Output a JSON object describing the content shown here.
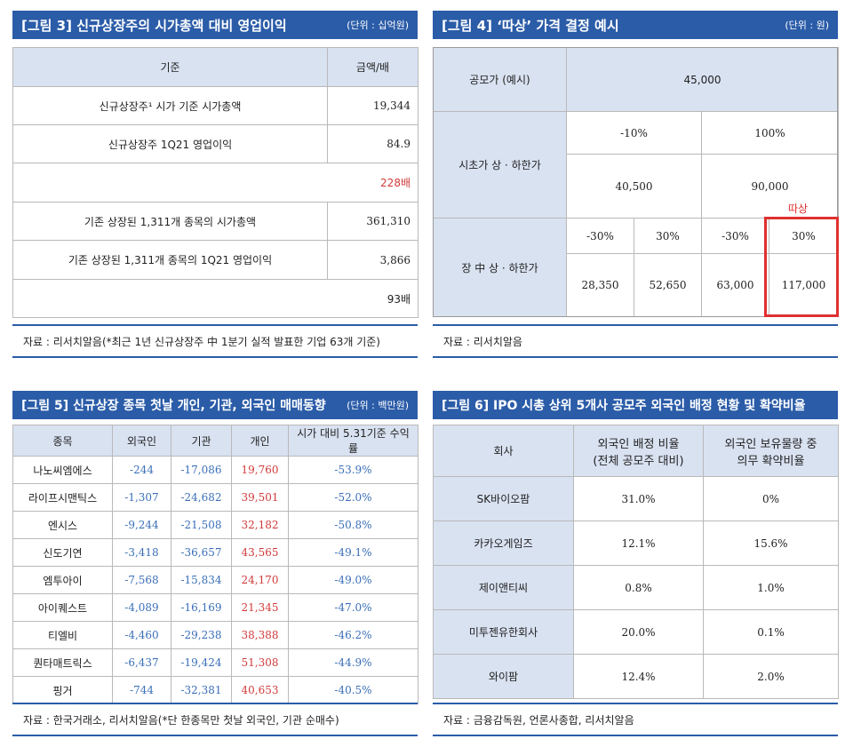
{
  "fig3": {
    "title": "[그림 3] 신규상장주의 시가총액 대비 영업이익",
    "unit": "(단위 : 십억원)",
    "headers": [
      "기준",
      "금액/배"
    ],
    "rows": [
      [
        "신규상장주¹ 시가 기준 시가총액",
        "19,344"
      ],
      [
        "신규상장주 1Q21 영업이익",
        "84.9"
      ],
      [
        "",
        "228배"
      ],
      [
        "기존 상장된 1,311개 종목의 시가총액",
        "361,310"
      ],
      [
        "기존 상장된 1,311개 종목의 1Q21 영업이익",
        "3,866"
      ],
      [
        "",
        "93배"
      ]
    ],
    "source": "자료 : 리서치알음(*최근 1년 신규상장주 中 1분기 실적 발표한 기업 63개 기준)"
  },
  "fig4": {
    "title": "[그림 4] ‘따상’ 가격 결정 예시",
    "unit": "(단위 : 원)",
    "ipo_label": "공모가 (예시)",
    "ipo_value": "45,000",
    "open_label": "시초가 상 · 하한가",
    "open_pcts": [
      "-10%",
      "100%"
    ],
    "open_vals": [
      "40,500",
      "90,000"
    ],
    "intraday_label": "장 中 상 · 하한가",
    "intraday_pcts": [
      "-30%",
      "30%",
      "-30%",
      "30%"
    ],
    "intraday_vals": [
      "28,350",
      "52,650",
      "63,000",
      "117,000"
    ],
    "tag": "따상",
    "source": "자료 : 리서치알음"
  },
  "fig5": {
    "title": "[그림 5] 신규상장 종목 첫날 개인, 기관, 외국인 매매동향",
    "unit": "(단위 : 백만원)",
    "headers": [
      "종목",
      "외국인",
      "기관",
      "개인",
      "시가 대비 5.31기준 수익률"
    ],
    "rows": [
      [
        "나노씨엠에스",
        "-244",
        "-17,086",
        "19,760",
        "-53.9%"
      ],
      [
        "라이프시맨틱스",
        "-1,307",
        "-24,682",
        "39,501",
        "-52.0%"
      ],
      [
        "엔시스",
        "-9,244",
        "-21,508",
        "32,182",
        "-50.8%"
      ],
      [
        "신도기연",
        "-3,418",
        "-36,657",
        "43,565",
        "-49.1%"
      ],
      [
        "엠투아이",
        "-7,568",
        "-15,834",
        "24,170",
        "-49.0%"
      ],
      [
        "아이퀘스트",
        "-4,089",
        "-16,169",
        "21,345",
        "-47.0%"
      ],
      [
        "티엘비",
        "-4,460",
        "-29,238",
        "38,388",
        "-46.2%"
      ],
      [
        "퀀타매트릭스",
        "-6,437",
        "-19,424",
        "51,308",
        "-44.9%"
      ],
      [
        "핑거",
        "-744",
        "-32,381",
        "40,653",
        "-40.5%"
      ]
    ],
    "source": "자료 : 한국거래소, 리서치알음(*단 한종목만 첫날 외국인, 기관 순매수)"
  },
  "fig6": {
    "title": "[그림 6] IPO 시총 상위 5개사 공모주 외국인 배정 현황 및 확약비율",
    "headers": [
      "회사",
      "외국인 배정 비율\n(전체 공모주 대비)",
      "외국인 보유물량 중\n의무 확약비율"
    ],
    "rows": [
      [
        "SK바이오팜",
        "31.0%",
        "0%"
      ],
      [
        "카카오게임즈",
        "12.1%",
        "15.6%"
      ],
      [
        "제이앤티씨",
        "0.8%",
        "1.0%"
      ],
      [
        "미투젠유한회사",
        "20.0%",
        "0.1%"
      ],
      [
        "와이팜",
        "12.4%",
        "2.0%"
      ]
    ],
    "source": "자료 : 금융감독원, 언론사종합, 리서치알음"
  },
  "colors": {
    "header_blue": "#2b5ca8",
    "label_bg": "#d9e2f1",
    "positive_red": "#d13a3a",
    "negative_blue": "#3a6fb8",
    "highlight": "#e03030"
  }
}
